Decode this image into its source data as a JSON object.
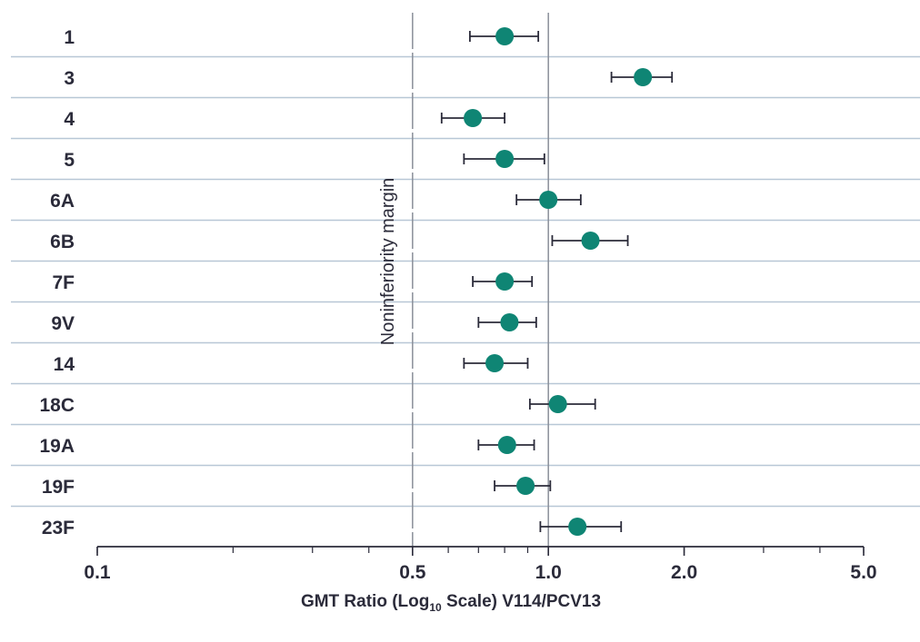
{
  "chart_data": {
    "type": "scatter",
    "subtype": "forest-plot",
    "x_scale": "log",
    "xlim": [
      0.1,
      5.0
    ],
    "x_ticks": [
      0.1,
      0.5,
      1.0,
      2.0,
      5.0
    ],
    "x_tick_labels": [
      "0.1",
      "0.5",
      "1.0",
      "2.0",
      "5.0"
    ],
    "xlabel": {
      "pre": "GMT Ratio (Log",
      "sub": "10",
      "post": " Scale) V114/PCV13"
    },
    "reference_lines": [
      {
        "x": 0.5,
        "label": "Noninferiority margin",
        "style": "dashed"
      },
      {
        "x": 1.0,
        "label": "",
        "style": "solid"
      }
    ],
    "categories": [
      "1",
      "3",
      "4",
      "5",
      "6A",
      "6B",
      "7F",
      "9V",
      "14",
      "18C",
      "19A",
      "19F",
      "23F"
    ],
    "estimates": [
      0.8,
      1.62,
      0.68,
      0.8,
      1.0,
      1.24,
      0.8,
      0.82,
      0.76,
      1.05,
      0.81,
      0.89,
      1.16
    ],
    "ci_lower": [
      0.67,
      1.38,
      0.58,
      0.65,
      0.85,
      1.02,
      0.68,
      0.7,
      0.65,
      0.91,
      0.7,
      0.76,
      0.96
    ],
    "ci_upper": [
      0.95,
      1.88,
      0.8,
      0.98,
      1.18,
      1.5,
      0.92,
      0.94,
      0.9,
      1.27,
      0.93,
      1.01,
      1.45
    ],
    "marker_color": "#0f8574",
    "errorbar_color": "#2b2b3a",
    "row_separator_color": "#b8c7d6",
    "grid": false
  }
}
